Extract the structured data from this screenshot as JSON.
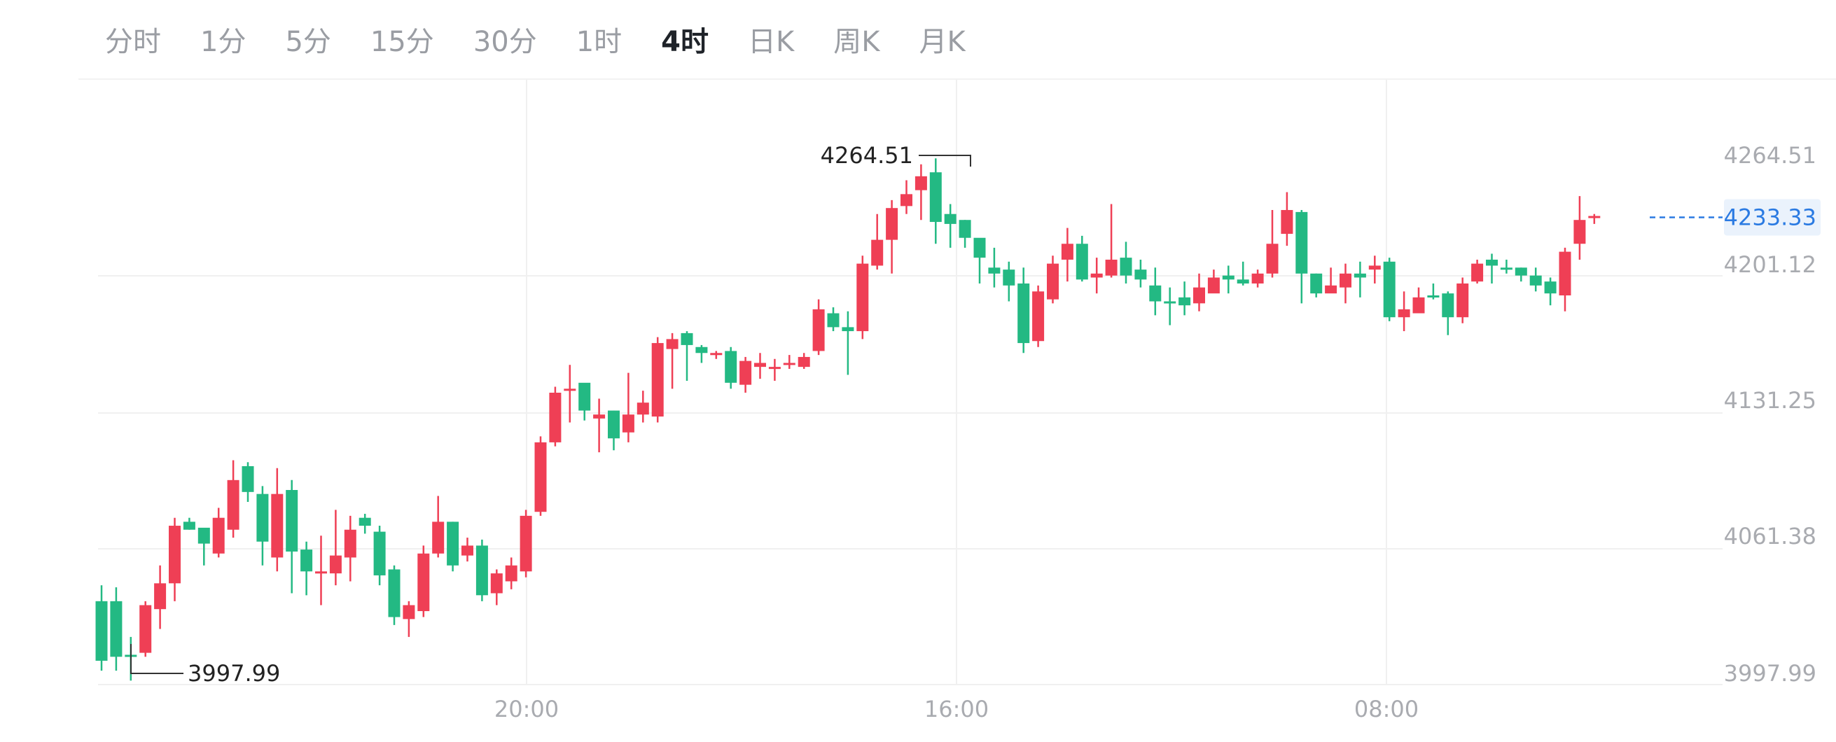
{
  "tabs": [
    {
      "label": "分时",
      "active": false
    },
    {
      "label": "1分",
      "active": false
    },
    {
      "label": "5分",
      "active": false
    },
    {
      "label": "15分",
      "active": false
    },
    {
      "label": "30分",
      "active": false
    },
    {
      "label": "1时",
      "active": false
    },
    {
      "label": "4时",
      "active": true
    },
    {
      "label": "日K",
      "active": false
    },
    {
      "label": "周K",
      "active": false
    },
    {
      "label": "月K",
      "active": false
    }
  ],
  "colors": {
    "up": "#ef3f55",
    "down": "#23b983",
    "last_price": "#2a7ae2"
  },
  "chart_data": {
    "type": "candlestick",
    "yaxis_ticks": [
      "4264.51",
      "4201.12",
      "4131.25",
      "4061.38",
      "3997.99"
    ],
    "ylim": [
      3997.99,
      4264.51
    ],
    "xaxis_ticks": [
      "20:00",
      "16:00",
      "08:00"
    ],
    "high_label": "4264.51",
    "low_label": "3997.99",
    "last_price": "4233.33",
    "candles": [
      [
        4040,
        4010,
        4048,
        4005
      ],
      [
        4040,
        4012,
        4047,
        4005
      ],
      [
        4013,
        4012,
        4022,
        4000
      ],
      [
        4014,
        4038,
        4040,
        4012
      ],
      [
        4036,
        4049,
        4058,
        4026
      ],
      [
        4049,
        4078,
        4082,
        4040
      ],
      [
        4080,
        4076,
        4082,
        4076
      ],
      [
        4077,
        4069,
        4075,
        4058
      ],
      [
        4064,
        4082,
        4087,
        4062
      ],
      [
        4076,
        4101,
        4111,
        4072
      ],
      [
        4108,
        4095,
        4110,
        4090
      ],
      [
        4094,
        4070,
        4098,
        4058
      ],
      [
        4062,
        4094,
        4107,
        4055
      ],
      [
        4096,
        4065,
        4101,
        4044
      ],
      [
        4066,
        4055,
        4070,
        4043
      ],
      [
        4055,
        4055,
        4073,
        4038
      ],
      [
        4054,
        4063,
        4086,
        4048
      ],
      [
        4062,
        4076,
        4083,
        4050
      ],
      [
        4082,
        4078,
        4084,
        4074
      ],
      [
        4075,
        4053,
        4078,
        4048
      ],
      [
        4056,
        4032,
        4058,
        4028
      ],
      [
        4031,
        4038,
        4040,
        4022
      ],
      [
        4035,
        4064,
        4068,
        4032
      ],
      [
        4064,
        4080,
        4093,
        4062
      ],
      [
        4080,
        4058,
        4080,
        4055
      ],
      [
        4063,
        4068,
        4072,
        4060
      ],
      [
        4068,
        4043,
        4071,
        4040
      ],
      [
        4044,
        4054,
        4056,
        4038
      ],
      [
        4050,
        4058,
        4062,
        4046
      ],
      [
        4055,
        4083,
        4086,
        4052
      ],
      [
        4085,
        4120,
        4123,
        4083
      ],
      [
        4120,
        4145,
        4148,
        4118
      ],
      [
        4146,
        4147,
        4159,
        4130
      ],
      [
        4150,
        4136,
        4145,
        4131
      ],
      [
        4132,
        4134,
        4142,
        4115
      ],
      [
        4136,
        4122,
        4136,
        4116
      ],
      [
        4125,
        4134,
        4155,
        4120
      ],
      [
        4134,
        4140,
        4146,
        4130
      ],
      [
        4133,
        4170,
        4173,
        4130
      ],
      [
        4167,
        4172,
        4175,
        4147
      ],
      [
        4175,
        4169,
        4176,
        4151
      ],
      [
        4168,
        4165,
        4169,
        4160
      ],
      [
        4165,
        4165,
        4166,
        4162
      ],
      [
        4166,
        4150,
        4168,
        4147
      ],
      [
        4149,
        4161,
        4163,
        4145
      ],
      [
        4158,
        4160,
        4165,
        4152
      ],
      [
        4157,
        4158,
        4162,
        4151
      ],
      [
        4159,
        4160,
        4164,
        4157
      ],
      [
        4158,
        4163,
        4165,
        4157
      ],
      [
        4166,
        4187,
        4192,
        4164
      ],
      [
        4185,
        4178,
        4188,
        4176
      ],
      [
        4178,
        4176,
        4186,
        4154
      ],
      [
        4176,
        4210,
        4214,
        4172
      ],
      [
        4209,
        4222,
        4235,
        4207
      ],
      [
        4222,
        4238,
        4242,
        4205
      ],
      [
        4239,
        4245,
        4252,
        4235
      ],
      [
        4247,
        4254,
        4260,
        4232
      ],
      [
        4256,
        4231,
        4263,
        4220
      ],
      [
        4235,
        4230,
        4240,
        4218
      ],
      [
        4232,
        4223,
        4232,
        4218
      ],
      [
        4223,
        4213,
        4221,
        4200
      ],
      [
        4208,
        4205,
        4218,
        4198
      ],
      [
        4207,
        4199,
        4211,
        4191
      ],
      [
        4200,
        4170,
        4208,
        4165
      ],
      [
        4171,
        4196,
        4199,
        4168
      ],
      [
        4192,
        4210,
        4214,
        4190
      ],
      [
        4212,
        4220,
        4228,
        4201
      ],
      [
        4220,
        4202,
        4224,
        4201
      ],
      [
        4203,
        4205,
        4213,
        4195
      ],
      [
        4204,
        4212,
        4240,
        4203
      ],
      [
        4213,
        4204,
        4221,
        4200
      ],
      [
        4207,
        4202,
        4212,
        4198
      ],
      [
        4199,
        4191,
        4208,
        4184
      ],
      [
        4191,
        4190,
        4198,
        4179
      ],
      [
        4193,
        4189,
        4201,
        4184
      ],
      [
        4190,
        4198,
        4205,
        4186
      ],
      [
        4195,
        4203,
        4207,
        4198
      ],
      [
        4204,
        4202,
        4209,
        4195
      ],
      [
        4202,
        4200,
        4211,
        4199
      ],
      [
        4200,
        4205,
        4207,
        4198
      ],
      [
        4205,
        4220,
        4237,
        4203
      ],
      [
        4225,
        4237,
        4246,
        4219
      ],
      [
        4236,
        4205,
        4237,
        4190
      ],
      [
        4205,
        4195,
        4205,
        4193
      ],
      [
        4195,
        4199,
        4208,
        4197
      ],
      [
        4198,
        4205,
        4210,
        4190
      ],
      [
        4205,
        4203,
        4211,
        4193
      ],
      [
        4207,
        4209,
        4214,
        4200
      ],
      [
        4211,
        4183,
        4213,
        4181
      ],
      [
        4183,
        4187,
        4196,
        4176
      ],
      [
        4185,
        4193,
        4198,
        4186
      ],
      [
        4194,
        4193,
        4200,
        4192
      ],
      [
        4195,
        4183,
        4196,
        4174
      ],
      [
        4183,
        4200,
        4203,
        4180
      ],
      [
        4201,
        4210,
        4212,
        4200
      ],
      [
        4212,
        4209,
        4215,
        4200
      ],
      [
        4208,
        4207,
        4212,
        4205
      ],
      [
        4208,
        4204,
        4208,
        4201
      ],
      [
        4204,
        4199,
        4208,
        4196
      ],
      [
        4201,
        4195,
        4203,
        4189
      ],
      [
        4194,
        4216,
        4218,
        4186
      ],
      [
        4220,
        4232,
        4244,
        4212
      ],
      [
        4233,
        4234,
        4235,
        4230
      ]
    ]
  }
}
